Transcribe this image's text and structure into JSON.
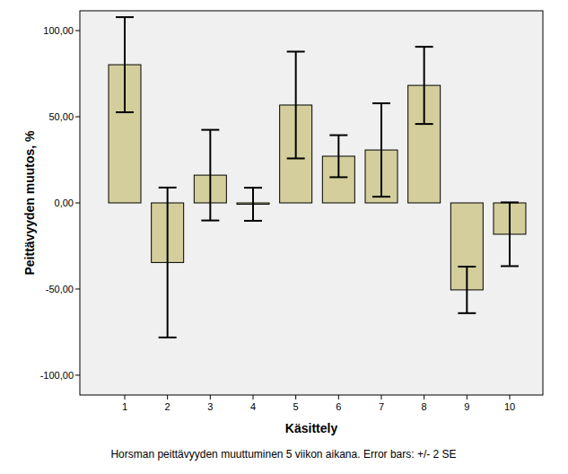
{
  "chart_data": {
    "type": "bar",
    "title": "Horsman peittävyyden muuttuminen 5 viikon aikana. Error bars: +/- 2 SE",
    "x_label": "Käsittely",
    "y_label": "Peittävyyden muutos, %",
    "categories": [
      "1",
      "2",
      "3",
      "4",
      "5",
      "6",
      "7",
      "8",
      "9",
      "10"
    ],
    "values": [
      80.2,
      -34.6,
      16.1,
      -0.8,
      56.8,
      27.1,
      30.7,
      68.2,
      -50.5,
      -18.2
    ],
    "errors": [
      27.6,
      43.5,
      26.3,
      9.6,
      31.0,
      12.2,
      27.1,
      22.4,
      13.5,
      18.5
    ],
    "color": "#d3ce9b",
    "ylim": [
      -111.5,
      111.5
    ],
    "yticks": [
      {
        "value": -100,
        "label": "-100,00"
      },
      {
        "value": -50,
        "label": "-50,00"
      },
      {
        "value": 0,
        "label": "0,00"
      },
      {
        "value": 50,
        "label": "50,00"
      },
      {
        "value": 100,
        "label": "100,00"
      }
    ],
    "grid": false
  }
}
